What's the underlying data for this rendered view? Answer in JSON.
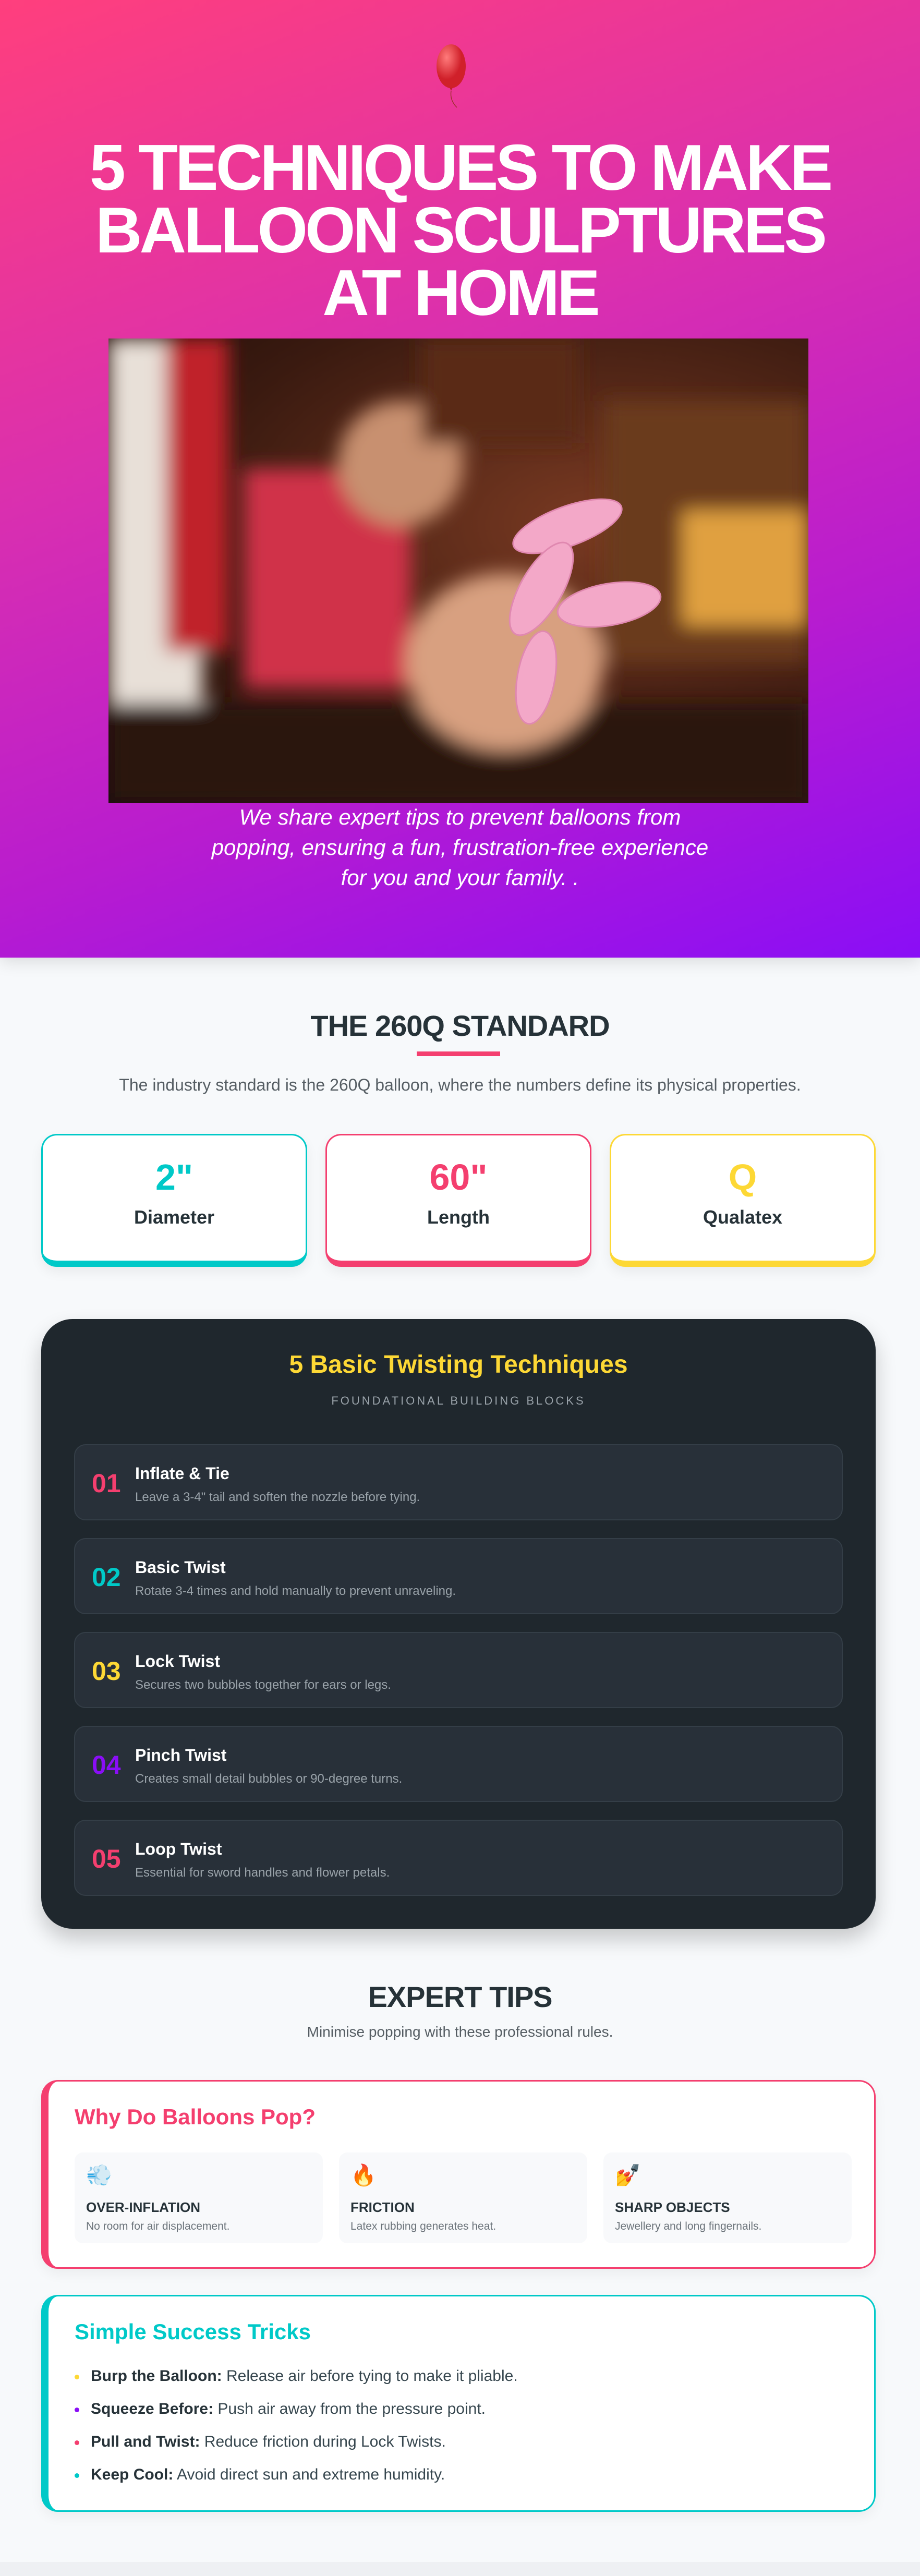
{
  "hero": {
    "icon": "balloon-icon",
    "title_lines": [
      "5 TECHNIQUES TO MAKE",
      "BALLOON SCULPTURES",
      "AT HOME"
    ],
    "subtitle": "We share expert tips to prevent balloons from popping, ensuring a fun, frustration-free experience for you and your family. ."
  },
  "standard": {
    "heading": "THE 260Q STANDARD",
    "intro": "The industry standard is the 260Q balloon, where the numbers define its physical properties.",
    "stats": [
      {
        "value": "2\"",
        "label": "Diameter",
        "color": "#00c9c8"
      },
      {
        "value": "60\"",
        "label": "Length",
        "color": "#f43f6f"
      },
      {
        "value": "Q",
        "label": "Qualatex",
        "color": "#fdd835"
      }
    ]
  },
  "techniques": {
    "title": "5 Basic Twisting Techniques",
    "subtitle": "FOUNDATIONAL BUILDING BLOCKS",
    "items": [
      {
        "num": "01",
        "title": "Inflate & Tie",
        "desc": "Leave a 3-4\" tail and soften the nozzle before tying.",
        "color": "#f43f6f"
      },
      {
        "num": "02",
        "title": "Basic Twist",
        "desc": "Rotate 3-4 times and hold manually to prevent unraveling.",
        "color": "#00c9c8"
      },
      {
        "num": "03",
        "title": "Lock Twist",
        "desc": "Secures two bubbles together for ears or legs.",
        "color": "#fdd835"
      },
      {
        "num": "04",
        "title": "Pinch Twist",
        "desc": "Creates small detail bubbles or 90-degree turns.",
        "color": "#8a0ef6"
      },
      {
        "num": "05",
        "title": "Loop Twist",
        "desc": "Essential for sword handles and flower petals.",
        "color": "#f43f6f"
      }
    ]
  },
  "tips": {
    "heading": "EXPERT TIPS",
    "subtitle": "Minimise popping with these professional rules.",
    "pop": {
      "title": "Why Do Balloons Pop?",
      "reasons": [
        {
          "emoji": "💨",
          "icon": "wind-icon",
          "label": "OVER-INFLATION",
          "desc": "No room for air displacement."
        },
        {
          "emoji": "🔥",
          "icon": "fire-icon",
          "label": "FRICTION",
          "desc": "Latex rubbing generates heat."
        },
        {
          "emoji": "💅",
          "icon": "nail-polish-icon",
          "label": "SHARP OBJECTS",
          "desc": "Jewellery and long fingernails."
        }
      ]
    },
    "tricks": {
      "title": "Simple Success Tricks",
      "items": [
        {
          "bold": "Burp the Balloon:",
          "text": "Release air before tying to make it pliable.",
          "color": "#fdd835"
        },
        {
          "bold": "Squeeze Before:",
          "text": "Push air away from the pressure point.",
          "color": "#8a0ef6"
        },
        {
          "bold": "Pull and Twist:",
          "text": "Reduce friction during Lock Twists.",
          "color": "#f43f6f"
        },
        {
          "bold": "Keep Cool:",
          "text": "Avoid direct sun and extreme humidity.",
          "color": "#00c9c8"
        }
      ]
    }
  }
}
